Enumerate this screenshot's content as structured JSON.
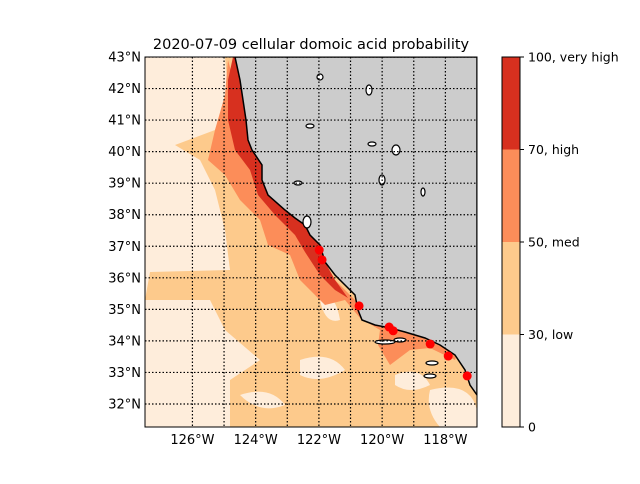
{
  "chart_data": {
    "type": "heatmap",
    "title": "2020-07-09 cellular domoic acid probability",
    "lon_range": [
      -127.5,
      -117.0
    ],
    "lat_range": [
      31.27,
      43.0
    ],
    "x_ticks": [
      {
        "value": -126,
        "label": "126°W"
      },
      {
        "value": -124,
        "label": "124°W"
      },
      {
        "value": -122,
        "label": "122°W"
      },
      {
        "value": -120,
        "label": "120°W"
      },
      {
        "value": -118,
        "label": "118°W"
      }
    ],
    "x_grid": [
      -126,
      -125,
      -124,
      -123,
      -122,
      -121,
      -120,
      -119,
      -118
    ],
    "y_ticks": [
      {
        "value": 43,
        "label": "43°N"
      },
      {
        "value": 42,
        "label": "42°N"
      },
      {
        "value": 41,
        "label": "41°N"
      },
      {
        "value": 40,
        "label": "40°N"
      },
      {
        "value": 39,
        "label": "39°N"
      },
      {
        "value": 38,
        "label": "38°N"
      },
      {
        "value": 37,
        "label": "37°N"
      },
      {
        "value": 36,
        "label": "36°N"
      },
      {
        "value": 35,
        "label": "35°N"
      },
      {
        "value": 34,
        "label": "34°N"
      },
      {
        "value": 33,
        "label": "33°N"
      },
      {
        "value": 32,
        "label": "32°N"
      }
    ],
    "colorbar": {
      "levels": [
        {
          "from": 0,
          "to": 30,
          "color": "#feeddb"
        },
        {
          "from": 30,
          "to": 50,
          "color": "#fdca8c"
        },
        {
          "from": 50,
          "to": 70,
          "color": "#fc8d59"
        },
        {
          "from": 70,
          "to": 100,
          "color": "#d7301f"
        }
      ],
      "tick_labels": [
        "0",
        "30, low",
        "50, med",
        "70, high",
        "100, very high"
      ],
      "tick_values": [
        0,
        30,
        50,
        70,
        100
      ]
    },
    "land_color": "#cccccc",
    "stations": {
      "color": "#ff0000",
      "points": [
        {
          "lon": -121.99,
          "lat": 36.88
        },
        {
          "lon": -121.9,
          "lat": 36.57
        },
        {
          "lon": -120.73,
          "lat": 35.11
        },
        {
          "lon": -119.78,
          "lat": 34.44
        },
        {
          "lon": -119.65,
          "lat": 34.32
        },
        {
          "lon": -118.48,
          "lat": 33.9
        },
        {
          "lon": -117.91,
          "lat": 33.52
        },
        {
          "lon": -117.31,
          "lat": 32.89
        }
      ]
    }
  }
}
